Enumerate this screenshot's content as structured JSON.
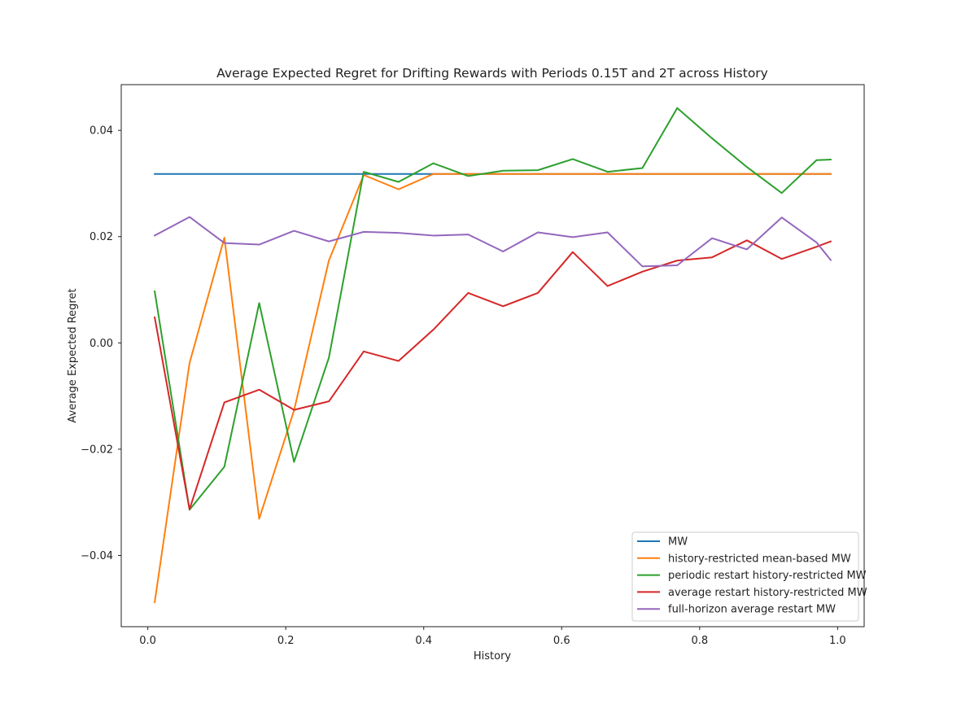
{
  "chart_data": {
    "type": "line",
    "title": "Average Expected Regret for Drifting Rewards with Periods 0.15T and 2T across History",
    "xlabel": "History",
    "ylabel": "Average Expected Regret",
    "xlim": [
      -0.0385,
      1.0385
    ],
    "ylim": [
      -0.0534,
      0.0486
    ],
    "xticks": [
      0.0,
      0.2,
      0.4,
      0.6,
      0.8,
      1.0
    ],
    "xtick_labels": [
      "0.0",
      "0.2",
      "0.4",
      "0.6",
      "0.8",
      "1.0"
    ],
    "yticks": [
      -0.04,
      -0.02,
      0.0,
      0.02,
      0.04
    ],
    "ytick_labels": [
      "−0.04",
      "−0.02",
      "0.00",
      "0.02",
      "0.04"
    ],
    "grid": false,
    "legend_position": "lower-right",
    "x": [
      0.01,
      0.0605,
      0.111,
      0.1615,
      0.212,
      0.2625,
      0.313,
      0.3635,
      0.414,
      0.4645,
      0.515,
      0.5655,
      0.616,
      0.6665,
      0.717,
      0.7675,
      0.818,
      0.8685,
      0.919,
      0.9695,
      0.99
    ],
    "series": [
      {
        "name": "MW",
        "color": "#1f77b4",
        "values": [
          0.0318,
          0.0318,
          0.0318,
          0.0318,
          0.0318,
          0.0318,
          0.0318,
          0.0318,
          0.0318,
          0.0318,
          0.0318,
          0.0318,
          0.0318,
          0.0318,
          0.0318,
          0.0318,
          0.0318,
          0.0318,
          0.0318,
          0.0318,
          0.0318
        ]
      },
      {
        "name": "history-restricted mean-based MW",
        "color": "#ff7f0e",
        "values": [
          -0.0488,
          -0.0038,
          0.0198,
          -0.0331,
          -0.0127,
          0.0155,
          0.0316,
          0.0289,
          0.0318,
          0.0318,
          0.0318,
          0.0318,
          0.0318,
          0.0318,
          0.0318,
          0.0318,
          0.0318,
          0.0318,
          0.0318,
          0.0318,
          0.0318
        ]
      },
      {
        "name": "periodic restart history-restricted MW",
        "color": "#2ca02c",
        "values": [
          0.0097,
          -0.0314,
          -0.0233,
          0.0075,
          -0.0224,
          -0.0028,
          0.0322,
          0.0303,
          0.0338,
          0.0314,
          0.0324,
          0.0325,
          0.0346,
          0.0322,
          0.0329,
          0.0442,
          0.0385,
          0.0331,
          0.0282,
          0.0344,
          0.0345
        ]
      },
      {
        "name": "average restart history-restricted MW",
        "color": "#d62728",
        "values": [
          0.0048,
          -0.0313,
          -0.0112,
          -0.0088,
          -0.0126,
          -0.011,
          -0.0016,
          -0.0034,
          0.0025,
          0.0094,
          0.0069,
          0.0094,
          0.0171,
          0.0107,
          0.0134,
          0.0155,
          0.0161,
          0.0193,
          0.0158,
          0.0181,
          0.0191
        ]
      },
      {
        "name": "full-horizon average restart MW",
        "color": "#9467bd",
        "values": [
          0.0202,
          0.0237,
          0.0188,
          0.0185,
          0.0211,
          0.0191,
          0.0209,
          0.0207,
          0.0202,
          0.0204,
          0.0172,
          0.0208,
          0.0199,
          0.0208,
          0.0144,
          0.0146,
          0.0197,
          0.0176,
          0.0236,
          0.0189,
          0.0156
        ]
      }
    ]
  }
}
